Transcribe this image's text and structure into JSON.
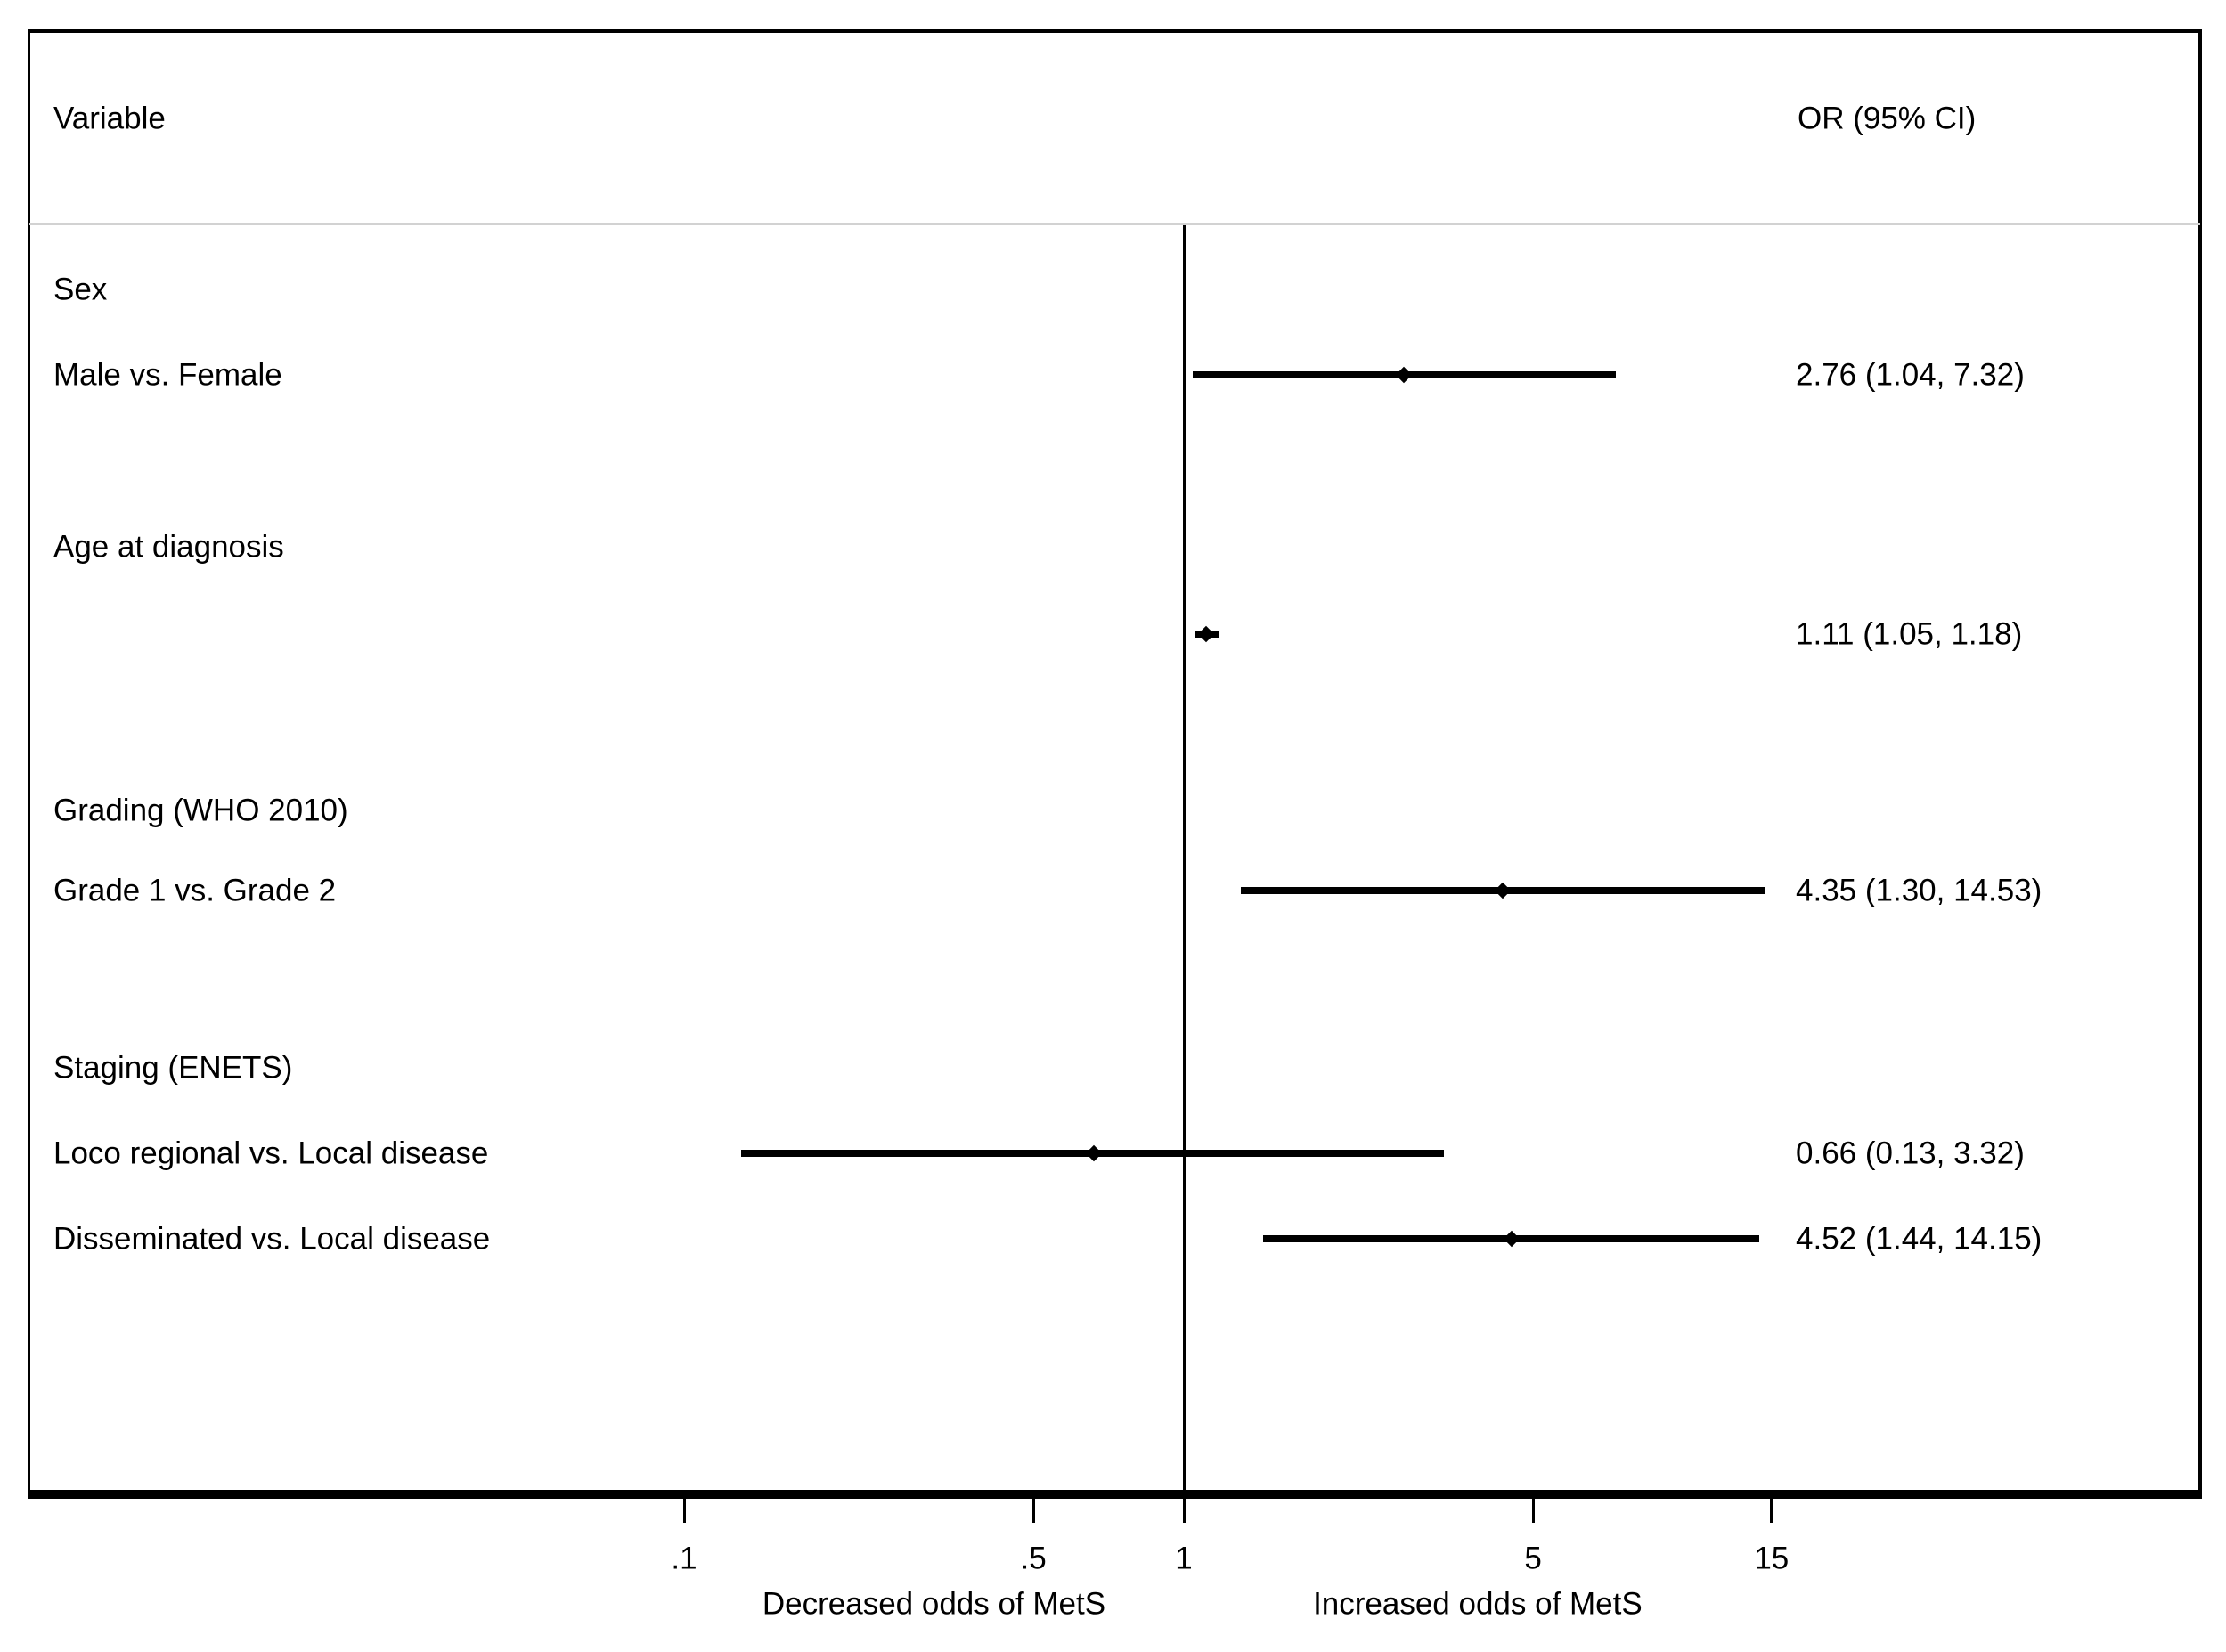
{
  "chart_data": {
    "type": "forest",
    "header": {
      "variable": "Variable",
      "or_ci": "OR (95% CI)"
    },
    "x_axis": {
      "scale": "log",
      "ref_line_value": 1,
      "ticks": [
        {
          "label": ".1",
          "value": 0.1
        },
        {
          "label": ".5",
          "value": 0.5
        },
        {
          "label": "1",
          "value": 1
        },
        {
          "label": "5",
          "value": 5
        },
        {
          "label": "15",
          "value": 15
        }
      ],
      "left_region_label": "Decreased odds of MetS",
      "right_region_label": "Increased odds of MetS"
    },
    "groups": [
      {
        "label": "Sex",
        "rows": [
          {
            "label": "Male vs. Female",
            "or": 2.76,
            "ci_low": 1.04,
            "ci_high": 7.32,
            "display": "2.76 (1.04, 7.32)"
          }
        ]
      },
      {
        "label": "Age at diagnosis",
        "rows": [
          {
            "label": "",
            "or": 1.11,
            "ci_low": 1.05,
            "ci_high": 1.18,
            "display": "1.11 (1.05, 1.18)"
          }
        ]
      },
      {
        "label": "Grading (WHO 2010)",
        "rows": [
          {
            "label": "Grade 1 vs. Grade 2",
            "or": 4.35,
            "ci_low": 1.3,
            "ci_high": 14.53,
            "display": "4.35 (1.30, 14.53)"
          }
        ]
      },
      {
        "label": "Staging (ENETS)",
        "rows": [
          {
            "label": "Loco regional vs. Local disease",
            "or": 0.66,
            "ci_low": 0.13,
            "ci_high": 3.32,
            "display": "0.66 (0.13, 3.32)"
          },
          {
            "label": "Disseminated vs. Local disease",
            "or": 4.52,
            "ci_low": 1.44,
            "ci_high": 14.15,
            "display": "4.52 (1.44, 14.15)"
          }
        ]
      }
    ],
    "colors": {
      "ink": "#000000",
      "divider": "#d2d2d2",
      "background": "#ffffff"
    }
  }
}
